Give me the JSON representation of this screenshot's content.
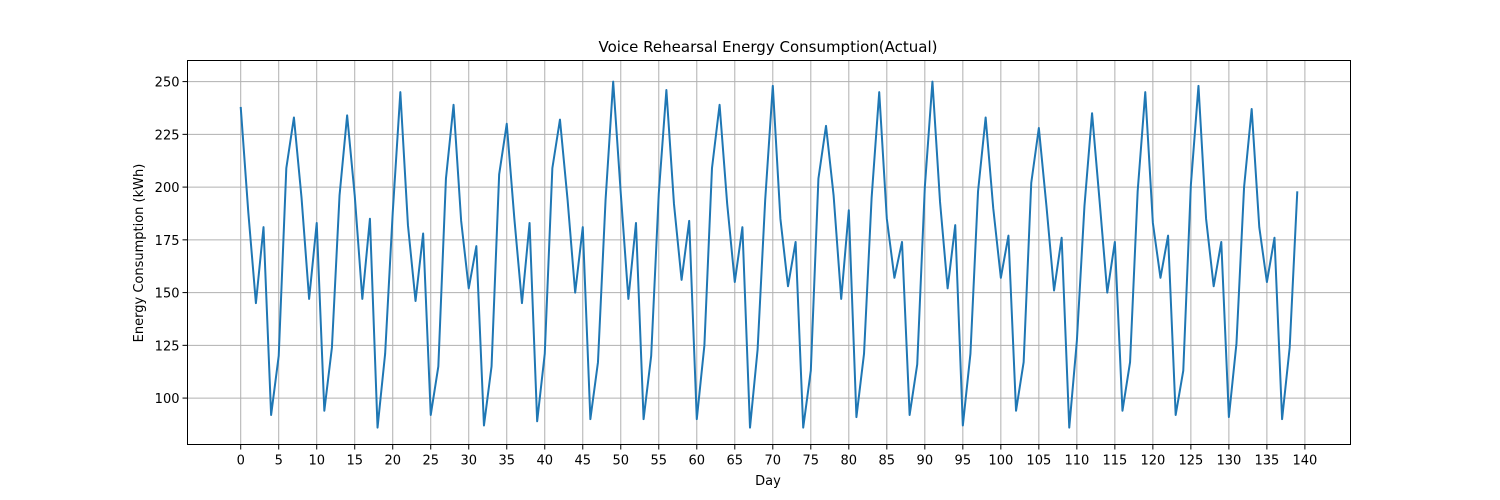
{
  "chart_data": {
    "type": "line",
    "title": "Voice Rehearsal Energy Consumption(Actual)",
    "xlabel": "Day",
    "ylabel": "Energy Consumption (kWh)",
    "xlim": [
      -7,
      146
    ],
    "ylim": [
      78,
      260
    ],
    "xticks": [
      0,
      5,
      10,
      15,
      20,
      25,
      30,
      35,
      40,
      45,
      50,
      55,
      60,
      65,
      70,
      75,
      80,
      85,
      90,
      95,
      100,
      105,
      110,
      115,
      120,
      125,
      130,
      135,
      140
    ],
    "yticks": [
      100,
      125,
      150,
      175,
      200,
      225,
      250
    ],
    "grid": true,
    "line_color": "#1f77b4",
    "series": [
      {
        "x": [
          0,
          1,
          2,
          3,
          4,
          5,
          6,
          7,
          8,
          9,
          10,
          11,
          12,
          13,
          14,
          15,
          16,
          17,
          18,
          19,
          20,
          21,
          22,
          23,
          24,
          25,
          26,
          27,
          28,
          29,
          30,
          31,
          32,
          33,
          34,
          35,
          36,
          37,
          38,
          39,
          40,
          41,
          42,
          43,
          44,
          45,
          46,
          47,
          48,
          49,
          50,
          51,
          52,
          53,
          54,
          55,
          56,
          57,
          58,
          59,
          60,
          61,
          62,
          63,
          64,
          65,
          66,
          67,
          68,
          69,
          70,
          71,
          72,
          73,
          74,
          75,
          76,
          77,
          78,
          79,
          80,
          81,
          82,
          83,
          84,
          85,
          86,
          87,
          88,
          89,
          90,
          91,
          92,
          93,
          94,
          95,
          96,
          97,
          98,
          99,
          100,
          101,
          102,
          103,
          104,
          105,
          106,
          107,
          108,
          109,
          110,
          111,
          112,
          113,
          114,
          115,
          116,
          117,
          118,
          119,
          120,
          121,
          122,
          123,
          124,
          125,
          126,
          127,
          128,
          129,
          130,
          131,
          132,
          133,
          134,
          135,
          136,
          137,
          138,
          139
        ],
        "values": [
          238,
          188,
          145,
          181,
          92,
          120,
          209,
          233,
          195,
          147,
          183,
          94,
          124,
          196,
          234,
          196,
          147,
          185,
          86,
          121,
          188,
          245,
          182,
          146,
          178,
          92,
          115,
          204,
          239,
          184,
          152,
          172,
          87,
          115,
          206,
          230,
          185,
          145,
          183,
          89,
          121,
          209,
          232,
          194,
          150,
          181,
          90,
          117,
          194,
          250,
          197,
          147,
          183,
          90,
          120,
          197,
          246,
          192,
          156,
          184,
          90,
          125,
          209,
          239,
          192,
          155,
          181,
          86,
          123,
          194,
          248,
          185,
          153,
          174,
          86,
          113,
          204,
          229,
          196,
          147,
          189,
          91,
          121,
          195,
          245,
          185,
          157,
          174,
          92,
          116,
          200,
          250,
          193,
          152,
          182,
          87,
          121,
          198,
          233,
          190,
          157,
          177,
          94,
          117,
          202,
          228,
          191,
          151,
          176,
          86,
          127,
          191,
          235,
          193,
          150,
          174,
          94,
          117,
          198,
          245,
          183,
          157,
          177,
          92,
          113,
          201,
          248,
          185,
          153,
          174,
          91,
          126,
          200,
          237,
          181,
          155,
          176,
          90,
          124,
          198
        ]
      }
    ]
  }
}
